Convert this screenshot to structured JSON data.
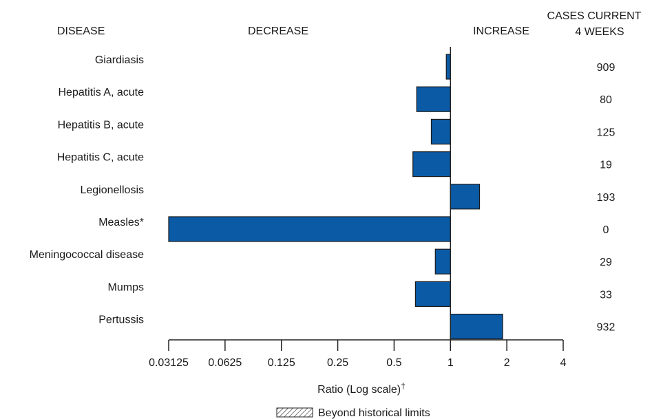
{
  "chart_data": {
    "type": "bar",
    "orientation": "horizontal",
    "headers": {
      "disease": "DISEASE",
      "decrease": "DECREASE",
      "increase": "INCREASE",
      "cases_line1": "CASES CURRENT",
      "cases_line2": "4 WEEKS"
    },
    "categories": [
      "Giardiasis",
      "Hepatitis A, acute",
      "Hepatitis B, acute",
      "Hepatitis C, acute",
      "Legionellosis",
      "Measles*",
      "Meningococcal disease",
      "Mumps",
      "Pertussis"
    ],
    "values": [
      0.95,
      0.66,
      0.79,
      0.63,
      1.43,
      0.03125,
      0.83,
      0.65,
      1.9
    ],
    "cases": [
      "909",
      "80",
      "125",
      "19",
      "193",
      "0",
      "29",
      "33",
      "932"
    ],
    "xscale": "log2",
    "xlim": [
      0.03125,
      4
    ],
    "xticks": [
      0.03125,
      0.0625,
      0.125,
      0.25,
      0.5,
      1,
      2,
      4
    ],
    "xtick_labels": [
      "0.03125",
      "0.0625",
      "0.125",
      "0.25",
      "0.5",
      "1",
      "2",
      "4"
    ],
    "xlabel": "Ratio (Log scale)",
    "xlabel_mark": "†",
    "legend": {
      "label": "Beyond historical limits",
      "position": "bottom-center"
    },
    "bar_color": "#0b5aa5"
  }
}
